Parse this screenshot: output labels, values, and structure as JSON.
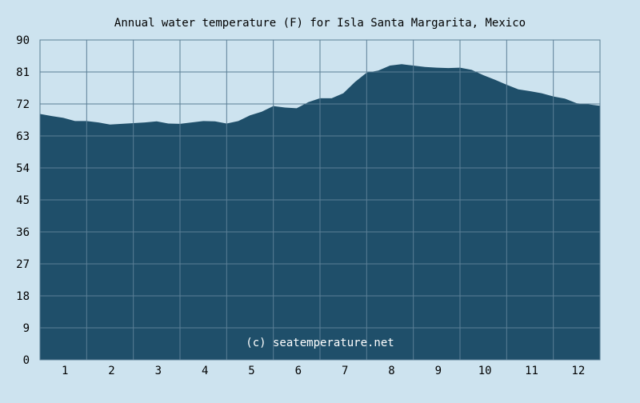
{
  "chart_data": {
    "type": "area",
    "title": "Annual water temperature (F) for Isla Santa Margarita, Mexico",
    "xlabel": "",
    "ylabel": "",
    "ylim": [
      0,
      90
    ],
    "xlim": [
      0.5,
      12.5
    ],
    "y_ticks": [
      0,
      9,
      18,
      27,
      36,
      45,
      54,
      63,
      72,
      81,
      90
    ],
    "x_ticks": [
      1,
      2,
      3,
      4,
      5,
      6,
      7,
      8,
      9,
      10,
      11,
      12
    ],
    "x_tick_labels": [
      "1",
      "2",
      "3",
      "4",
      "5",
      "6",
      "7",
      "8",
      "9",
      "10",
      "11",
      "12"
    ],
    "grid": true,
    "legend": "none",
    "annotation": "(c) seatemperature.net",
    "series": [
      {
        "x": [
          0.5,
          0.75,
          1.0,
          1.25,
          1.5,
          1.75,
          2.0,
          2.25,
          2.5,
          2.75,
          3.0,
          3.25,
          3.5,
          3.75,
          4.0,
          4.25,
          4.5,
          4.75,
          5.0,
          5.25,
          5.5,
          5.75,
          6.0,
          6.25,
          6.5,
          6.75,
          7.0,
          7.25,
          7.5,
          7.75,
          8.0,
          8.25,
          8.5,
          8.75,
          9.0,
          9.25,
          9.5,
          9.75,
          10.0,
          10.25,
          10.5,
          10.75,
          11.0,
          11.25,
          11.5,
          11.75,
          12.0,
          12.25,
          12.5
        ],
        "values": [
          69.2,
          68.6,
          68.1,
          67.2,
          67.2,
          66.8,
          66.2,
          66.4,
          66.6,
          66.8,
          67.1,
          66.5,
          66.4,
          66.8,
          67.2,
          67.1,
          66.5,
          67.2,
          68.8,
          69.8,
          71.4,
          71.0,
          70.8,
          72.5,
          73.6,
          73.6,
          75.0,
          78.2,
          80.8,
          81.4,
          82.8,
          83.2,
          82.8,
          82.4,
          82.2,
          82.1,
          82.2,
          81.6,
          80.1,
          78.8,
          77.4,
          76.1,
          75.6,
          75.0,
          74.1,
          73.5,
          72.2,
          71.9,
          71.5
        ]
      }
    ],
    "colors": {
      "background": "#cde3ef",
      "plot_background": "#cde3ef",
      "fill": "#1f4f6a",
      "grid": "#5b7f96",
      "border": "#5b7f96",
      "text": "#000000",
      "annotation_text": "#ffffff"
    }
  }
}
